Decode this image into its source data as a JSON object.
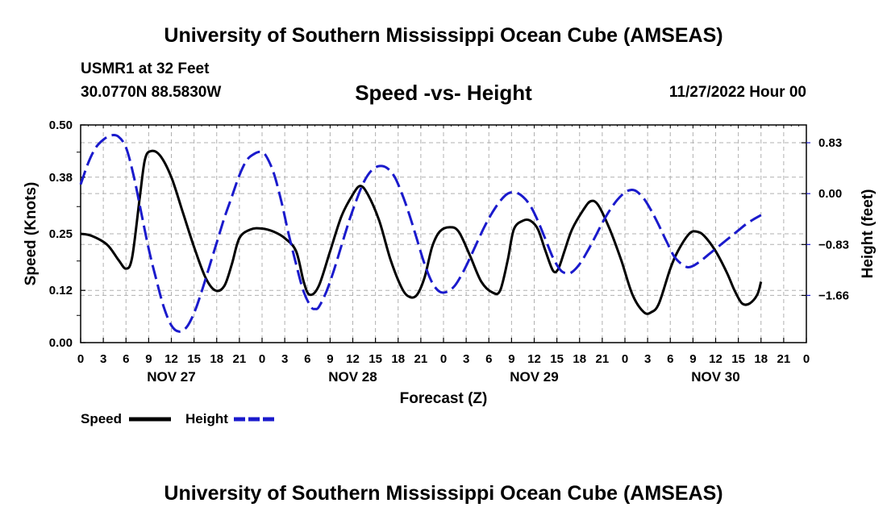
{
  "header": {
    "title_top": "University of Southern Mississippi Ocean Cube (AMSEAS)",
    "station": "USMR1 at 32 Feet",
    "coords": "30.0770N  88.5830W",
    "subtitle": "Speed -vs- Height",
    "datetime": "11/27/2022 Hour 00",
    "title_bottom": "University of Southern Mississippi Ocean Cube (AMSEAS)"
  },
  "colors": {
    "speed": "#000000",
    "height": "#1a1acc",
    "grid": "#b0b0b0"
  },
  "chart_data": {
    "type": "line",
    "title": "Speed -vs- Height",
    "xlabel": "Forecast (Z)",
    "ylabel_left": "Speed (Knots)",
    "ylabel_right": "Height (feet)",
    "x_range": [
      0,
      96
    ],
    "x_tick_hours": [
      0,
      3,
      6,
      9,
      12,
      15,
      18,
      21,
      24,
      27,
      30,
      33,
      36,
      39,
      42,
      45,
      48,
      51,
      54,
      57,
      60,
      63,
      66,
      69,
      72,
      75,
      78,
      81,
      84,
      87,
      90,
      93,
      96
    ],
    "x_tick_labels": [
      "0",
      "3",
      "6",
      "9",
      "12",
      "15",
      "18",
      "21",
      "0",
      "3",
      "6",
      "9",
      "12",
      "15",
      "18",
      "21",
      "0",
      "3",
      "6",
      "9",
      "12",
      "15",
      "18",
      "21",
      "0",
      "3",
      "6",
      "9",
      "12",
      "15",
      "18",
      "21",
      "0"
    ],
    "date_labels": [
      {
        "hour": 12,
        "label": "NOV 27"
      },
      {
        "hour": 36,
        "label": "NOV 28"
      },
      {
        "hour": 60,
        "label": "NOV 29"
      },
      {
        "hour": 84,
        "label": "NOV 30"
      }
    ],
    "y_left": {
      "range": [
        0,
        0.5
      ],
      "ticks": [
        0.0,
        0.12,
        0.25,
        0.38,
        0.5
      ],
      "tick_labels": [
        "0.00",
        "0.12",
        "0.25",
        "0.38",
        "0.50"
      ]
    },
    "y_right": {
      "range": [
        -2.43,
        1.12
      ],
      "ticks": [
        0.83,
        0.0,
        -0.83,
        -1.66
      ],
      "tick_labels": [
        "0.83",
        "0.00",
        "−0.83",
        "−1.66"
      ]
    },
    "legend": [
      {
        "name": "Speed",
        "style": "solid"
      },
      {
        "name": "Height",
        "style": "dashed"
      }
    ],
    "series": [
      {
        "name": "Speed",
        "axis": "left",
        "points": [
          [
            0,
            0.25
          ],
          [
            1.5,
            0.245
          ],
          [
            3.5,
            0.225
          ],
          [
            5,
            0.19
          ],
          [
            6,
            0.17
          ],
          [
            6.8,
            0.195
          ],
          [
            7.8,
            0.33
          ],
          [
            8.5,
            0.42
          ],
          [
            9.3,
            0.44
          ],
          [
            10.5,
            0.43
          ],
          [
            12,
            0.38
          ],
          [
            13.5,
            0.3
          ],
          [
            15,
            0.22
          ],
          [
            16.5,
            0.15
          ],
          [
            17.8,
            0.12
          ],
          [
            19,
            0.13
          ],
          [
            20,
            0.18
          ],
          [
            21,
            0.24
          ],
          [
            22.5,
            0.26
          ],
          [
            24,
            0.262
          ],
          [
            25.5,
            0.255
          ],
          [
            27,
            0.24
          ],
          [
            28.5,
            0.21
          ],
          [
            29.5,
            0.14
          ],
          [
            30.3,
            0.11
          ],
          [
            31.5,
            0.13
          ],
          [
            33,
            0.21
          ],
          [
            34.5,
            0.29
          ],
          [
            36,
            0.34
          ],
          [
            37,
            0.36
          ],
          [
            38,
            0.34
          ],
          [
            39.5,
            0.28
          ],
          [
            41,
            0.19
          ],
          [
            42.5,
            0.125
          ],
          [
            43.5,
            0.105
          ],
          [
            44.5,
            0.11
          ],
          [
            45.5,
            0.15
          ],
          [
            46.5,
            0.22
          ],
          [
            47.5,
            0.255
          ],
          [
            48.8,
            0.265
          ],
          [
            50,
            0.255
          ],
          [
            51.5,
            0.2
          ],
          [
            53,
            0.14
          ],
          [
            54.5,
            0.115
          ],
          [
            55.5,
            0.12
          ],
          [
            56.5,
            0.19
          ],
          [
            57.3,
            0.26
          ],
          [
            58.5,
            0.28
          ],
          [
            59.5,
            0.28
          ],
          [
            60.5,
            0.26
          ],
          [
            61.5,
            0.21
          ],
          [
            62.5,
            0.165
          ],
          [
            63.2,
            0.17
          ],
          [
            64,
            0.21
          ],
          [
            65,
            0.26
          ],
          [
            66.5,
            0.305
          ],
          [
            67.5,
            0.325
          ],
          [
            68.5,
            0.315
          ],
          [
            70,
            0.26
          ],
          [
            71.5,
            0.19
          ],
          [
            73,
            0.11
          ],
          [
            74.5,
            0.07
          ],
          [
            75.5,
            0.07
          ],
          [
            76.5,
            0.09
          ],
          [
            78,
            0.17
          ],
          [
            79,
            0.21
          ],
          [
            80.5,
            0.25
          ],
          [
            81.5,
            0.255
          ],
          [
            82.5,
            0.245
          ],
          [
            84,
            0.21
          ],
          [
            85.5,
            0.16
          ],
          [
            86.5,
            0.12
          ],
          [
            87.5,
            0.09
          ],
          [
            88.5,
            0.09
          ],
          [
            89.5,
            0.11
          ],
          [
            90,
            0.14
          ]
        ]
      },
      {
        "name": "Height",
        "axis": "right",
        "points": [
          [
            0,
            0.15
          ],
          [
            1,
            0.5
          ],
          [
            2,
            0.75
          ],
          [
            3,
            0.88
          ],
          [
            4,
            0.95
          ],
          [
            5,
            0.93
          ],
          [
            6,
            0.75
          ],
          [
            7,
            0.3
          ],
          [
            8,
            -0.3
          ],
          [
            9,
            -0.9
          ],
          [
            10,
            -1.4
          ],
          [
            11,
            -1.85
          ],
          [
            12,
            -2.15
          ],
          [
            13,
            -2.25
          ],
          [
            14,
            -2.18
          ],
          [
            15,
            -1.95
          ],
          [
            16,
            -1.6
          ],
          [
            17,
            -1.2
          ],
          [
            18,
            -0.8
          ],
          [
            19,
            -0.4
          ],
          [
            20,
            -0.05
          ],
          [
            21,
            0.3
          ],
          [
            22,
            0.55
          ],
          [
            23,
            0.65
          ],
          [
            23.8,
            0.68
          ],
          [
            24.5,
            0.62
          ],
          [
            25.5,
            0.35
          ],
          [
            26.5,
            -0.1
          ],
          [
            27.5,
            -0.65
          ],
          [
            28.5,
            -1.15
          ],
          [
            29.5,
            -1.6
          ],
          [
            30.5,
            -1.85
          ],
          [
            31,
            -1.88
          ],
          [
            31.5,
            -1.85
          ],
          [
            32.5,
            -1.6
          ],
          [
            33.5,
            -1.25
          ],
          [
            34.5,
            -0.85
          ],
          [
            35.5,
            -0.45
          ],
          [
            36.5,
            -0.1
          ],
          [
            37.5,
            0.2
          ],
          [
            38.5,
            0.38
          ],
          [
            39.5,
            0.45
          ],
          [
            40.5,
            0.42
          ],
          [
            41.5,
            0.28
          ],
          [
            42.5,
            0.0
          ],
          [
            43.5,
            -0.35
          ],
          [
            44.5,
            -0.75
          ],
          [
            45.5,
            -1.15
          ],
          [
            46.5,
            -1.45
          ],
          [
            47.5,
            -1.6
          ],
          [
            48.5,
            -1.6
          ],
          [
            49.5,
            -1.5
          ],
          [
            50.5,
            -1.3
          ],
          [
            51.5,
            -1.05
          ],
          [
            52.5,
            -0.78
          ],
          [
            53.5,
            -0.52
          ],
          [
            54.5,
            -0.3
          ],
          [
            55.5,
            -0.12
          ],
          [
            56.5,
            0.0
          ],
          [
            57.5,
            0.02
          ],
          [
            58.5,
            -0.05
          ],
          [
            59.5,
            -0.2
          ],
          [
            60.5,
            -0.45
          ],
          [
            61.5,
            -0.75
          ],
          [
            62.5,
            -1.05
          ],
          [
            63.5,
            -1.25
          ],
          [
            64.3,
            -1.3
          ],
          [
            65,
            -1.28
          ],
          [
            66,
            -1.15
          ],
          [
            67,
            -0.95
          ],
          [
            68,
            -0.72
          ],
          [
            69,
            -0.48
          ],
          [
            70,
            -0.27
          ],
          [
            71,
            -0.1
          ],
          [
            72,
            0.02
          ],
          [
            72.8,
            0.06
          ],
          [
            73.5,
            0.04
          ],
          [
            74.5,
            -0.08
          ],
          [
            75.5,
            -0.28
          ],
          [
            76.5,
            -0.52
          ],
          [
            77.5,
            -0.78
          ],
          [
            78.5,
            -1.02
          ],
          [
            79.5,
            -1.15
          ],
          [
            80.3,
            -1.2
          ],
          [
            81,
            -1.18
          ],
          [
            82,
            -1.1
          ],
          [
            83,
            -1.0
          ],
          [
            84,
            -0.9
          ],
          [
            85,
            -0.8
          ],
          [
            86,
            -0.7
          ],
          [
            87,
            -0.6
          ],
          [
            88,
            -0.5
          ],
          [
            89,
            -0.42
          ],
          [
            90,
            -0.35
          ]
        ]
      }
    ]
  }
}
